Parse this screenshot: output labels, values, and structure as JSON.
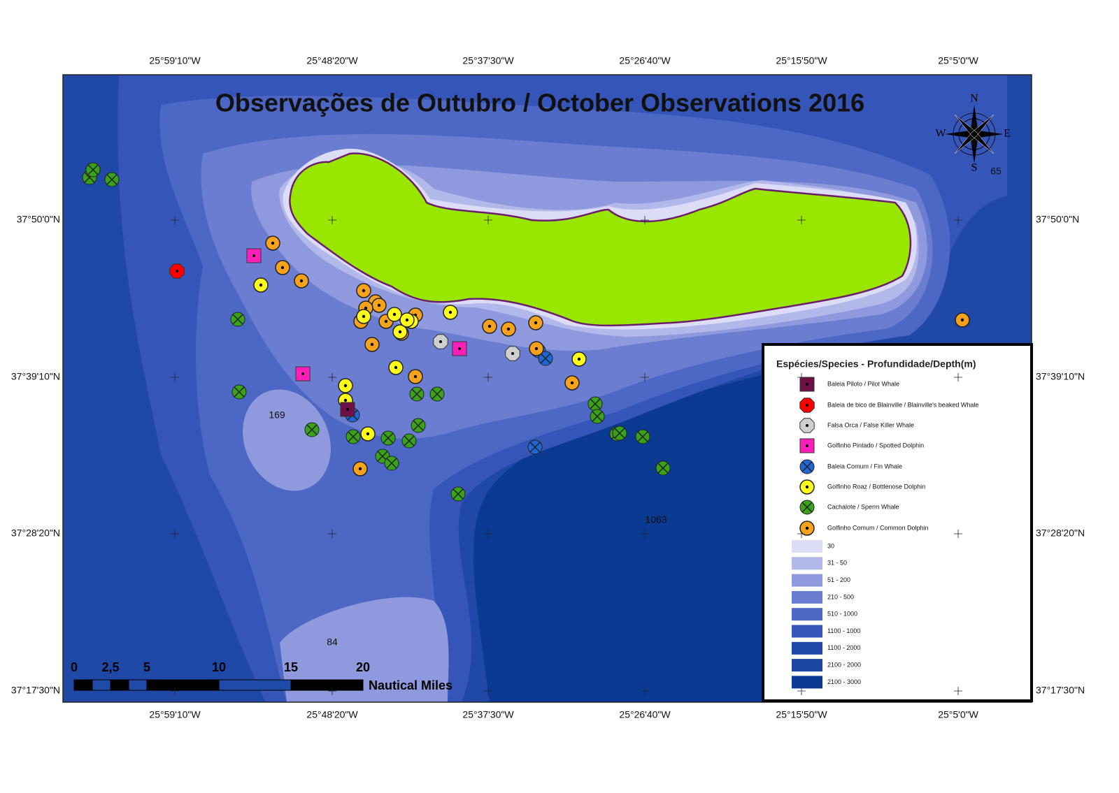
{
  "title": "Observações de Outubro / October Observations 2016",
  "lon_labels": [
    "25°59'10\"W",
    "25°48'20\"W",
    "25°37'30\"W",
    "25°26'40\"W",
    "25°15'50\"W",
    "25°5'0\"W"
  ],
  "lat_labels": [
    "37°50'0\"N",
    "37°39'10\"N",
    "37°28'20\"N",
    "37°17'30\"N"
  ],
  "compass": {
    "n": "N",
    "w": "W",
    "e": "E",
    "s": "S"
  },
  "depth_marks": [
    "65",
    "169",
    "1063",
    "84"
  ],
  "scale": {
    "ticks": [
      "0",
      "2,5",
      "5",
      "10",
      "15",
      "20"
    ],
    "unit": "Nautical Miles"
  },
  "legend": {
    "title": "Espécies/Species - Profundidade/Depth(m)",
    "species": [
      "Baleia Piloto / Pilot Whale",
      "Baleia de bico de Blainville / Blainville's beaked Whale",
      "Falsa Orca / False Killer Whale",
      "Golfinho Pintado / Spotted Dolphin",
      "Baleia Comum / Fin Whale",
      "Golfinho Roaz / Bottlenose Dolphin",
      "Cachalote  / Sperm Whale",
      "Golfinho Comum / Common Dolphin"
    ],
    "depths": [
      "30",
      "31 - 50",
      "51 - 200",
      "210 - 500",
      "510 - 1000",
      "1100 - 1000",
      "1100 - 2000",
      "2100 - 2000",
      "2100 - 3000"
    ]
  }
}
